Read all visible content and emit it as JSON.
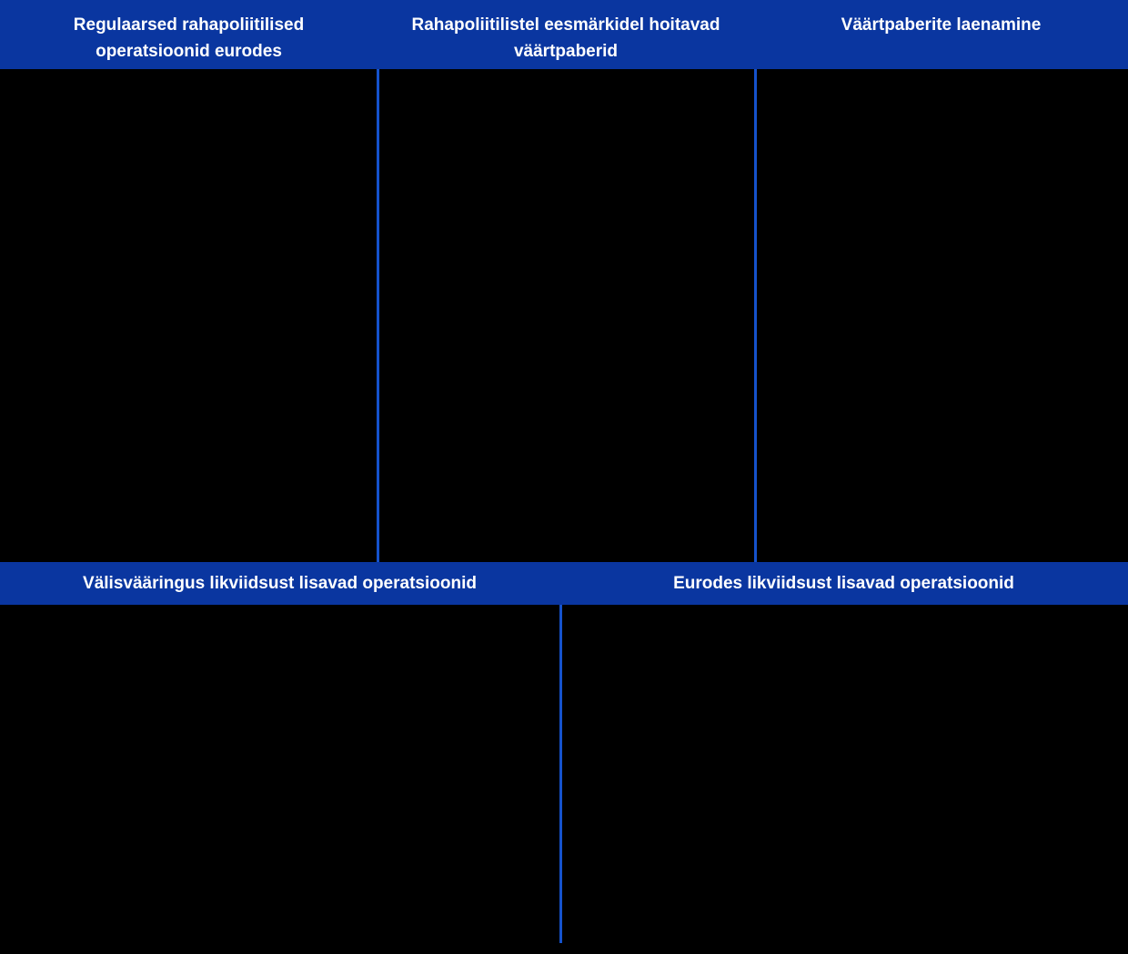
{
  "colors": {
    "header_bar": "#0a36a0",
    "divider": "#1552cc",
    "background": "#000000",
    "header_text": "#ffffff"
  },
  "top_bar": {
    "columns": [
      {
        "title": "Regulaarsed rahapoliitilised operatsioonid eurodes",
        "lines": [
          "Regulaarsed rahapoliitilised",
          "operatsioonid eurodes"
        ]
      },
      {
        "title": "Rahapoliitilistel eesmärkidel hoitavad väärtpaberid",
        "lines": [
          "Rahapoliitilistel eesmärkidel hoitavad",
          "väärtpaberid"
        ]
      },
      {
        "title": "Väärtpaberite laenamine",
        "lines": [
          "Väärtpaberite laenamine"
        ]
      }
    ]
  },
  "middle_bar": {
    "columns": [
      {
        "title": "Välisvääringus likviidsust lisavad operatsioonid"
      },
      {
        "title": "Eurodes likviidsust lisavad operatsioonid"
      }
    ]
  }
}
